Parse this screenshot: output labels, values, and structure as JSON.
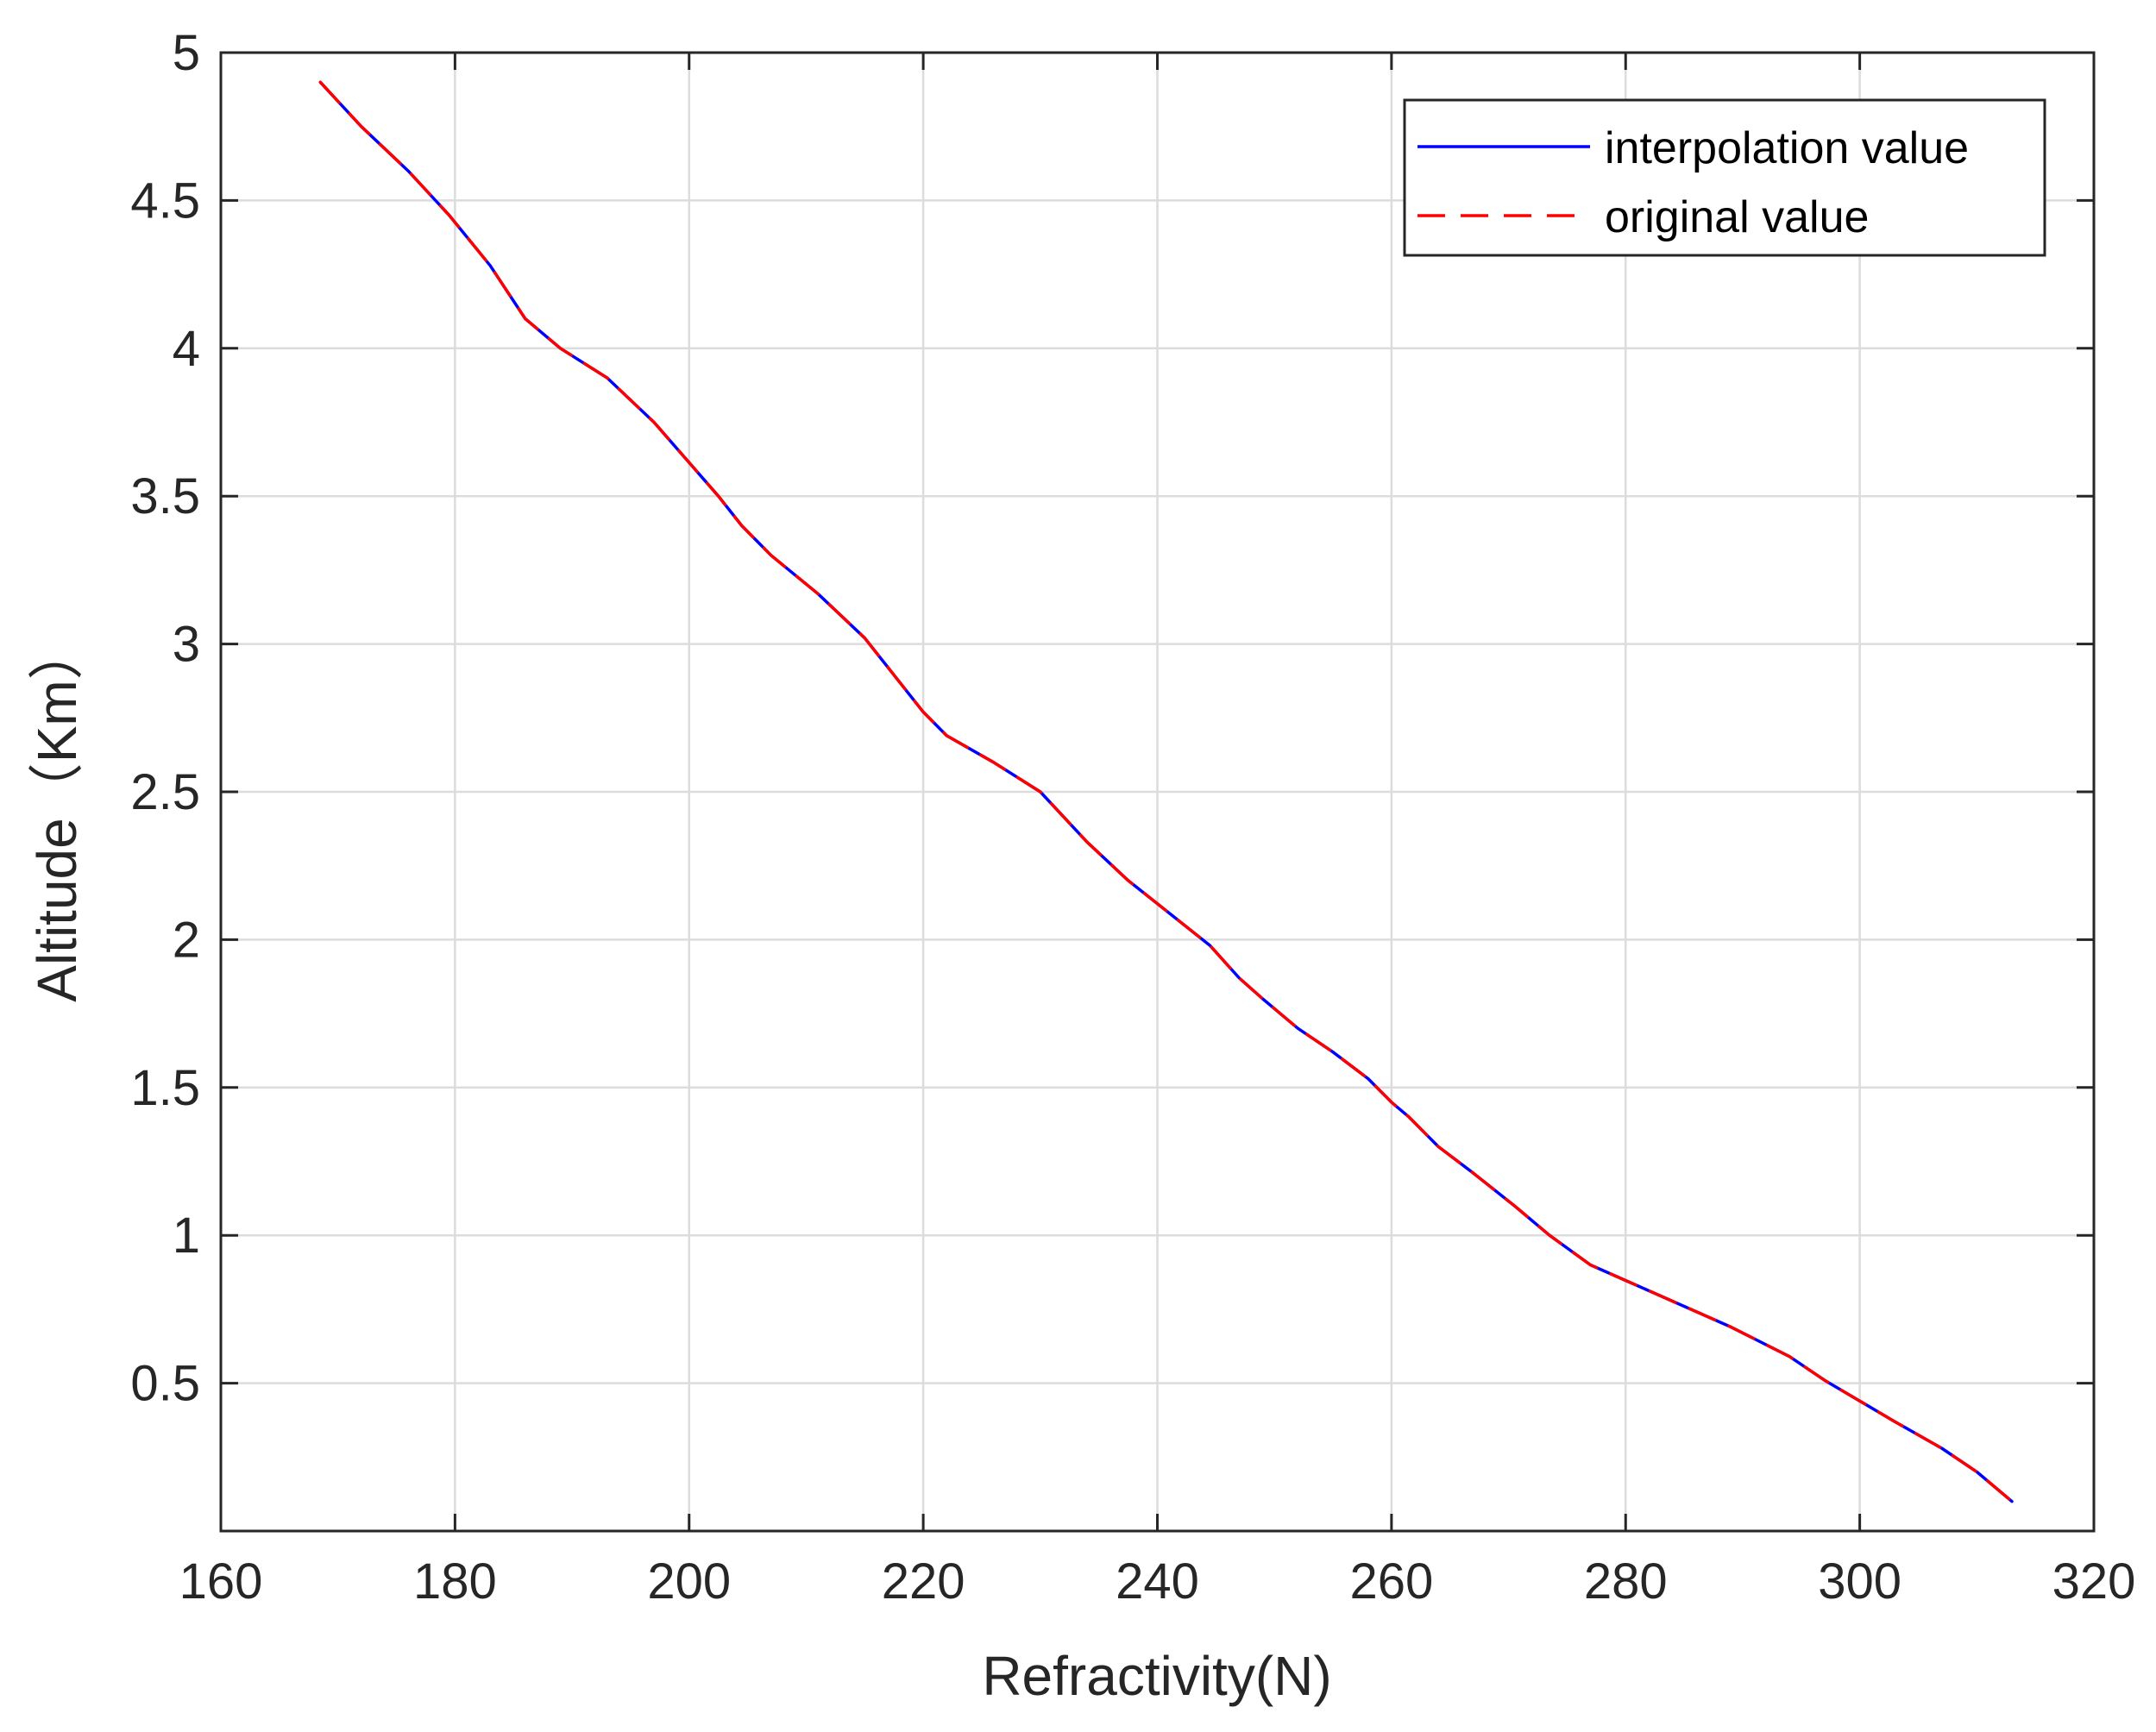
{
  "chart_data": {
    "type": "line",
    "xlabel": "Refractivity(N)",
    "ylabel": "Altitude（Km）",
    "xlim": [
      160,
      320
    ],
    "ylim": [
      0,
      5
    ],
    "xticks": [
      160,
      180,
      200,
      220,
      240,
      260,
      280,
      300,
      320
    ],
    "yticks": [
      0.5,
      1,
      1.5,
      2,
      2.5,
      3,
      3.5,
      4,
      4.5,
      5
    ],
    "xtick_labels": [
      "160",
      "180",
      "200",
      "220",
      "240",
      "260",
      "280",
      "300",
      "320"
    ],
    "ytick_labels": [
      "0.5",
      "1",
      "1.5",
      "2",
      "2.5",
      "3",
      "3.5",
      "4",
      "4.5",
      "5"
    ],
    "grid": true,
    "legend_position": "top-right",
    "series": [
      {
        "name": "interpolation value",
        "color": "#0000ff",
        "style": "solid",
        "x": [
          168.5,
          172,
          176,
          179.5,
          183,
          186,
          189,
          193,
          197,
          202.5,
          204.5,
          207,
          211,
          215,
          218,
          220,
          222,
          226,
          230,
          234,
          237.5,
          241,
          244.5,
          247,
          249,
          252,
          255,
          258,
          260,
          261.5,
          264,
          267,
          270.5,
          273.5,
          277,
          281,
          285,
          289,
          294,
          297,
          300,
          303,
          307,
          310,
          313
        ],
        "y": [
          4.9,
          4.75,
          4.6,
          4.45,
          4.28,
          4.1,
          4.0,
          3.9,
          3.75,
          3.5,
          3.4,
          3.3,
          3.17,
          3.02,
          2.87,
          2.77,
          2.69,
          2.6,
          2.5,
          2.33,
          2.2,
          2.09,
          1.98,
          1.87,
          1.8,
          1.7,
          1.62,
          1.53,
          1.45,
          1.4,
          1.3,
          1.21,
          1.1,
          1.0,
          0.9,
          0.83,
          0.76,
          0.69,
          0.59,
          0.51,
          0.44,
          0.37,
          0.28,
          0.2,
          0.1
        ]
      },
      {
        "name": "original value",
        "color": "#ff0000",
        "style": "dashed",
        "x": [
          168.5,
          172,
          176,
          179.5,
          183,
          186,
          189,
          193,
          197,
          202.5,
          204.5,
          207,
          211,
          215,
          218,
          220,
          222,
          226,
          230,
          234,
          237.5,
          241,
          244.5,
          247,
          249,
          252,
          255,
          258,
          260,
          261.5,
          264,
          267,
          270.5,
          273.5,
          277,
          281,
          285,
          289,
          294,
          297,
          300,
          303,
          307,
          310,
          313
        ],
        "y": [
          4.9,
          4.75,
          4.6,
          4.45,
          4.28,
          4.1,
          4.0,
          3.9,
          3.75,
          3.5,
          3.4,
          3.3,
          3.17,
          3.02,
          2.87,
          2.77,
          2.69,
          2.6,
          2.5,
          2.33,
          2.2,
          2.09,
          1.98,
          1.87,
          1.8,
          1.7,
          1.62,
          1.53,
          1.45,
          1.4,
          1.3,
          1.21,
          1.1,
          1.0,
          0.9,
          0.83,
          0.76,
          0.69,
          0.59,
          0.51,
          0.44,
          0.37,
          0.28,
          0.2,
          0.1
        ]
      }
    ]
  }
}
